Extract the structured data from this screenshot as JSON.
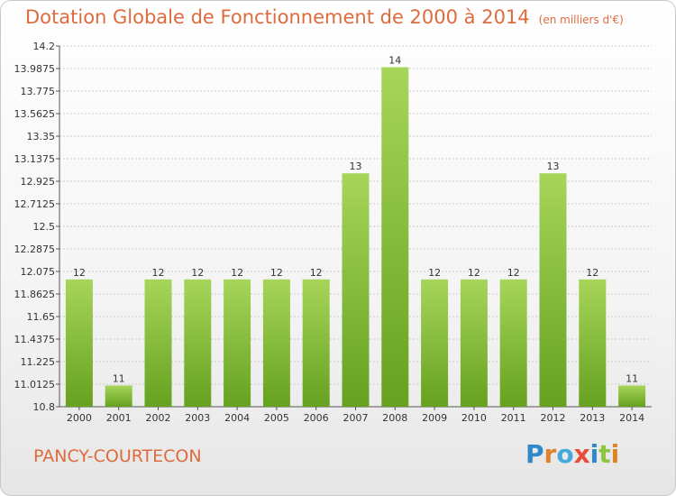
{
  "header": {
    "title": "Dotation Globale de Fonctionnement de 2000 à 2014",
    "subtitle": "(en milliers d'€)"
  },
  "footer": {
    "commune": "PANCY-COURTECON",
    "logo": "Proxiti",
    "logo_colors": [
      "#2f88c8",
      "#e0822a",
      "#47a8dc",
      "#e84c3c",
      "#2f88c8",
      "#8cc63f",
      "#e0822a"
    ]
  },
  "colors": {
    "bar_light": "#a6d55a",
    "bar_dark": "#66a11f",
    "title": "#dd6b3e",
    "grid": "#cccccc"
  },
  "chart_data": {
    "type": "bar",
    "title": "Dotation Globale de Fonctionnement de 2000 à 2014",
    "subtitle": "(en milliers d'€)",
    "xlabel": "",
    "ylabel": "",
    "categories": [
      "2000",
      "2001",
      "2002",
      "2003",
      "2004",
      "2005",
      "2006",
      "2007",
      "2008",
      "2009",
      "2010",
      "2011",
      "2012",
      "2013",
      "2014"
    ],
    "values": [
      12,
      11,
      12,
      12,
      12,
      12,
      12,
      13,
      14,
      12,
      12,
      12,
      13,
      12,
      11
    ],
    "value_labels": [
      "12",
      "11",
      "12",
      "12",
      "12",
      "12",
      "12",
      "13",
      "14",
      "12",
      "12",
      "12",
      "13",
      "12",
      "11"
    ],
    "ylim": [
      10.8,
      14.2
    ],
    "yticks": [
      10.8,
      11.0125,
      11.225,
      11.4375,
      11.65,
      11.8625,
      12.075,
      12.2875,
      12.5,
      12.7125,
      12.925,
      13.1375,
      13.35,
      13.5625,
      13.775,
      13.9875,
      14.2
    ],
    "ytick_labels": [
      "10.8",
      "11.0125",
      "11.225",
      "11.4375",
      "11.65",
      "11.8625",
      "12.075",
      "12.2875",
      "12.5",
      "12.7125",
      "12.925",
      "13.1375",
      "13.35",
      "13.5625",
      "13.775",
      "13.9875",
      "14.2"
    ],
    "grid": true
  }
}
